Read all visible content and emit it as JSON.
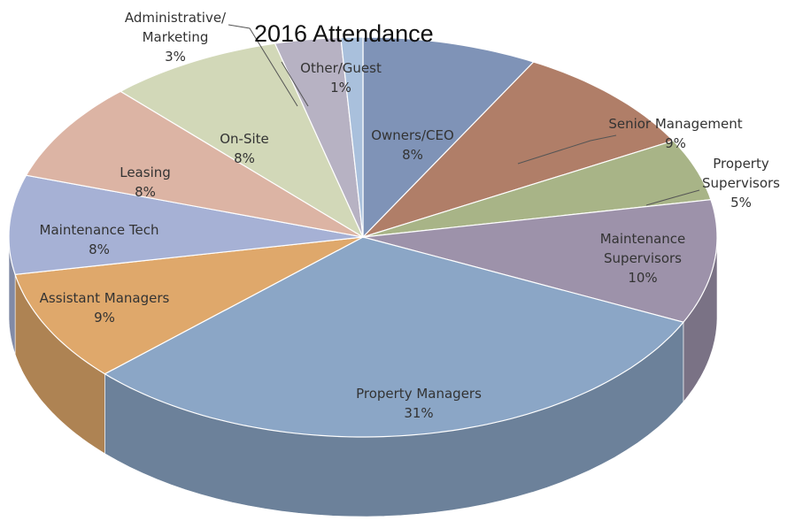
{
  "chart_data": {
    "type": "pie",
    "title": "2016 Attendance",
    "slices": [
      {
        "name": "Owners/CEO",
        "value": 8,
        "label": "8%",
        "color": "#7f93b7"
      },
      {
        "name": "Senior Management",
        "value": 9,
        "label": "9%",
        "color": "#b07e68"
      },
      {
        "name": "Property Supervisors",
        "value": 5,
        "label": "5%",
        "color": "#a8b487"
      },
      {
        "name": "Maintenance Supervisors",
        "value": 10,
        "label": "10%",
        "color": "#9d92aa"
      },
      {
        "name": "Property Managers",
        "value": 31,
        "label": "31%",
        "color": "#8ba6c6"
      },
      {
        "name": "Assistant Managers",
        "value": 9,
        "label": "9%",
        "color": "#dfa86b"
      },
      {
        "name": "Maintenance Tech",
        "value": 8,
        "label": "8%",
        "color": "#a6b1d5"
      },
      {
        "name": "Leasing",
        "value": 8,
        "label": "8%",
        "color": "#dcb4a4"
      },
      {
        "name": "On-Site",
        "value": 8,
        "label": "8%",
        "color": "#d2d8b8"
      },
      {
        "name": "Administrative/ Marketing",
        "value": 3,
        "label": "3%",
        "color": "#b7b2c3"
      },
      {
        "name": "Other/Guest",
        "value": 1,
        "label": "1%",
        "color": "#a9c0dc"
      }
    ],
    "label_lines": [
      [
        "Owners/CEO",
        "8%"
      ],
      [
        "Senior Management",
        "9%"
      ],
      [
        "Property",
        "Supervisors",
        "5%"
      ],
      [
        "Maintenance",
        "Supervisors",
        "10%"
      ],
      [
        "Property Managers",
        "31%"
      ],
      [
        "Assistant Managers",
        "9%"
      ],
      [
        "Maintenance Tech",
        "8%"
      ],
      [
        "Leasing",
        "8%"
      ],
      [
        "On-Site",
        "8%"
      ],
      [
        "Administrative/",
        "Marketing",
        "3%"
      ],
      [
        "Other/Guest",
        "1%"
      ]
    ]
  }
}
